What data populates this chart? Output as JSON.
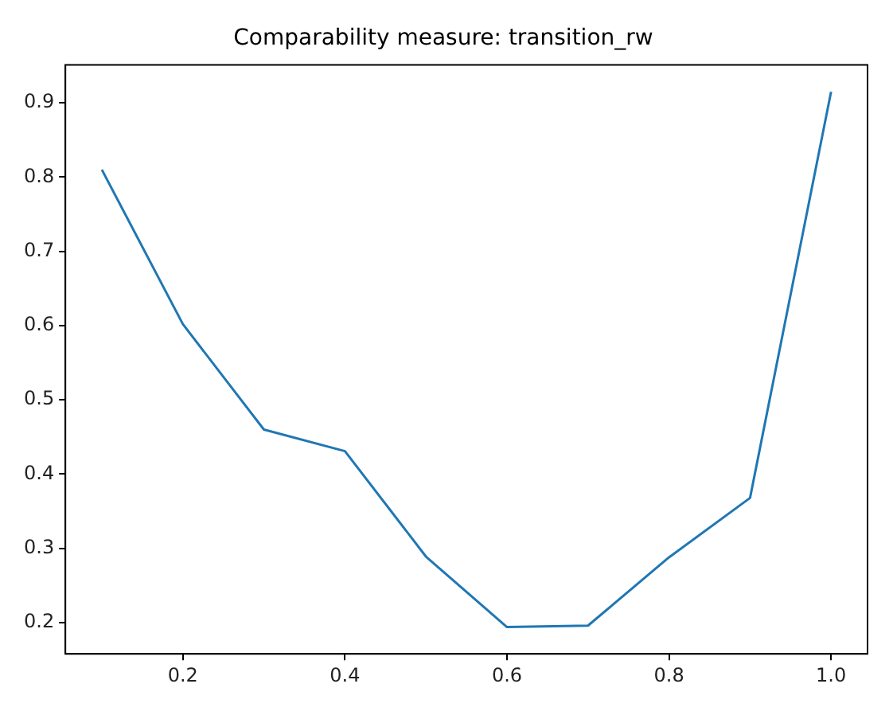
{
  "chart_data": {
    "type": "line",
    "title": "Comparability measure: transition_rw",
    "x": [
      0.1,
      0.2,
      0.3,
      0.4,
      0.5,
      0.6,
      0.7,
      0.8,
      0.9,
      1.0
    ],
    "series": [
      {
        "color": "#1f77b4",
        "values": [
          0.81,
          0.602,
          0.46,
          0.431,
          0.289,
          0.194,
          0.196,
          0.288,
          0.368,
          0.915
        ]
      }
    ],
    "xlim": [
      0.055,
      1.045
    ],
    "xticks": [
      0.2,
      0.4,
      0.6,
      0.8,
      {
        "value": 1.0,
        "label": "1.0"
      }
    ],
    "ylim": [
      0.158,
      0.951
    ],
    "yticks": [
      0.2,
      0.3,
      0.4,
      0.5,
      0.6,
      0.7,
      0.8,
      0.9
    ],
    "grid": false,
    "legend": false,
    "marker": "none",
    "line_style": "solid"
  }
}
